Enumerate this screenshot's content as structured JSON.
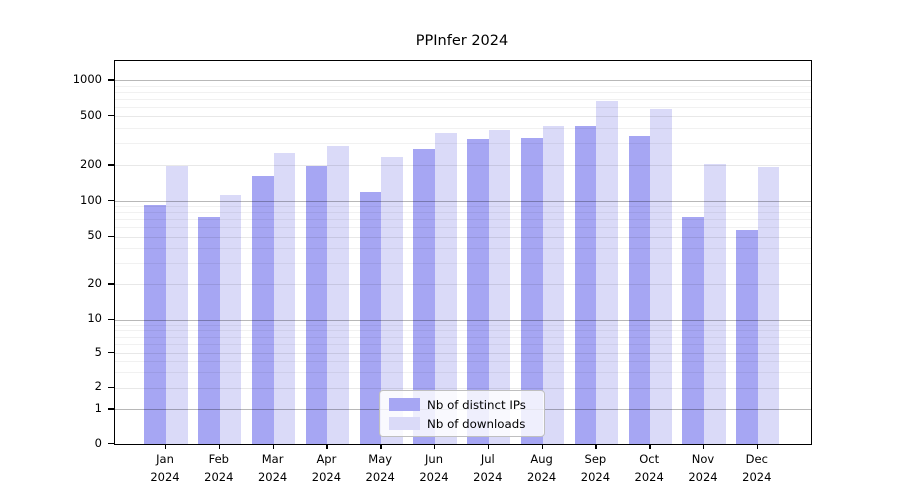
{
  "chart_data": {
    "type": "bar",
    "title": "PPInfer 2024",
    "year_label": "2024",
    "months": [
      "Jan",
      "Feb",
      "Mar",
      "Apr",
      "May",
      "Jun",
      "Jul",
      "Aug",
      "Sep",
      "Oct",
      "Nov",
      "Dec"
    ],
    "series": [
      {
        "name": "Nb of distinct IPs",
        "color": "#a6a6f3",
        "values": [
          92,
          73,
          162,
          197,
          119,
          270,
          324,
          334,
          418,
          345,
          73,
          57
        ]
      },
      {
        "name": "Nb of downloads",
        "color": "#dadaf8",
        "values": [
          197,
          112,
          251,
          285,
          235,
          362,
          389,
          419,
          672,
          576,
          205,
          192
        ]
      }
    ],
    "y_ticks": [
      0,
      1,
      2,
      5,
      10,
      20,
      50,
      100,
      200,
      500,
      1000
    ],
    "y_axis_scale": "log-like",
    "ylim": [
      0,
      1000
    ],
    "grid": true,
    "legend_position": "lower center",
    "bar_group": "side-by-side",
    "frame_color": "#000000",
    "background_color": "#ffffff"
  }
}
